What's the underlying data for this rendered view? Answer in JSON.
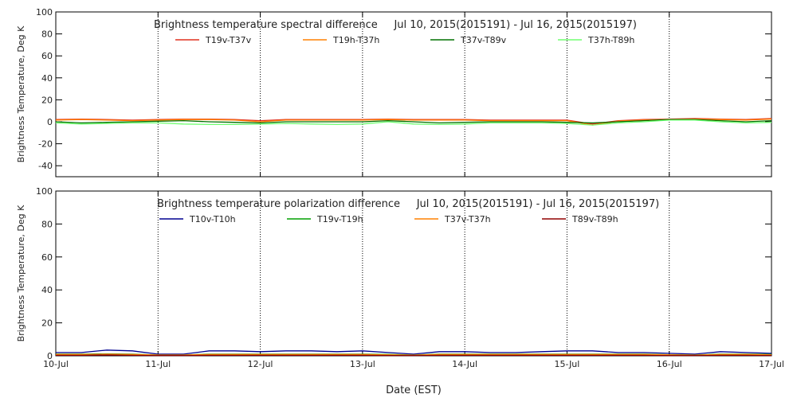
{
  "chart_data": [
    {
      "type": "line",
      "title": "Brightness temperature spectral difference     Jul 10, 2015(2015191) - Jul 16, 2015(2015197)",
      "y_label": "Brightness Temperature, Deg K",
      "x": [
        0,
        0.25,
        0.5,
        0.75,
        1,
        1.25,
        1.5,
        1.75,
        2,
        2.25,
        2.5,
        2.75,
        3,
        3.25,
        3.5,
        3.75,
        4,
        4.25,
        4.5,
        4.75,
        5,
        5.25,
        5.5,
        5.75,
        6,
        6.25,
        6.5,
        6.75,
        7
      ],
      "xlim": [
        0,
        7
      ],
      "xticks": [
        0,
        1,
        2,
        3,
        4,
        5,
        6,
        7
      ],
      "ylim": [
        -50,
        100
      ],
      "yticks": [
        -40,
        -20,
        0,
        20,
        40,
        60,
        80,
        100
      ],
      "grid": true,
      "series": [
        {
          "name": "T19v-T37v",
          "color": "#e0301e",
          "values": [
            2,
            2.5,
            2,
            1.5,
            2,
            2.5,
            2.5,
            2,
            1,
            2,
            2,
            2,
            2,
            2.5,
            2,
            2,
            2,
            1.5,
            1.5,
            1.5,
            1.5,
            -2,
            1,
            2,
            2.5,
            3,
            2.5,
            2,
            3
          ]
        },
        {
          "name": "T19h-T37h",
          "color": "#ff8000",
          "values": [
            1.5,
            2,
            1.5,
            1,
            1.5,
            2,
            2,
            1.5,
            0,
            1.5,
            1.5,
            1.5,
            1.5,
            2,
            1.5,
            1.5,
            1.5,
            1,
            1,
            1,
            1,
            -3,
            0.5,
            1.5,
            2,
            2.5,
            2,
            1.5,
            2.5
          ]
        },
        {
          "name": "T37v-T89v",
          "color": "#007000",
          "values": [
            0,
            -1,
            -0.5,
            0,
            0.5,
            1,
            0,
            -0.5,
            -1,
            0,
            0,
            0,
            0,
            1,
            0,
            -1,
            -0.5,
            0,
            0,
            0,
            -0.5,
            -1,
            0,
            1,
            2,
            2,
            1,
            0,
            1
          ]
        },
        {
          "name": "T37h-T89h",
          "color": "#70ff70",
          "values": [
            -1,
            -2,
            -1.5,
            -1,
            -1,
            -2,
            -2.5,
            -2.5,
            -2,
            -1.5,
            -2,
            -2.5,
            -2,
            0,
            -2,
            -2.5,
            -2,
            -1,
            -1,
            -1,
            -1.5,
            -3,
            -1,
            0,
            1.5,
            1.5,
            0,
            -1,
            -0.5
          ]
        }
      ]
    },
    {
      "type": "line",
      "title": "Brightness temperature polarization difference     Jul 10, 2015(2015191) - Jul 16, 2015(2015197)",
      "y_label": "Brightness Temperature, Deg K",
      "x_label": "Date (EST)",
      "x": [
        0,
        0.25,
        0.5,
        0.75,
        1,
        1.25,
        1.5,
        1.75,
        2,
        2.25,
        2.5,
        2.75,
        3,
        3.25,
        3.5,
        3.75,
        4,
        4.25,
        4.5,
        4.75,
        5,
        5.25,
        5.5,
        5.75,
        6,
        6.25,
        6.5,
        6.75,
        7
      ],
      "xlim": [
        0,
        7
      ],
      "xticks": [
        {
          "value": 0,
          "label": "10-Jul"
        },
        {
          "value": 1,
          "label": "11-Jul"
        },
        {
          "value": 2,
          "label": "12-Jul"
        },
        {
          "value": 3,
          "label": "13-Jul"
        },
        {
          "value": 4,
          "label": "14-Jul"
        },
        {
          "value": 5,
          "label": "15-Jul"
        },
        {
          "value": 6,
          "label": "16-Jul"
        },
        {
          "value": 7,
          "label": "17-Jul"
        }
      ],
      "ylim": [
        0,
        100
      ],
      "yticks": [
        0,
        20,
        40,
        60,
        80,
        100
      ],
      "grid": true,
      "series": [
        {
          "name": "T10v-T10h",
          "color": "#000090",
          "values": [
            2,
            2,
            3.5,
            3,
            1,
            1,
            3,
            3,
            2.5,
            3,
            3,
            2.5,
            3,
            2,
            1,
            2.5,
            2.5,
            2,
            2,
            2.5,
            3,
            3,
            2,
            2,
            1.5,
            1,
            2.5,
            2,
            1.5
          ]
        },
        {
          "name": "T19v-T19h",
          "color": "#00a000",
          "values": [
            1,
            1,
            1.2,
            1,
            0.5,
            0.5,
            1,
            1,
            1,
            1,
            1,
            1,
            1,
            0.8,
            0.5,
            1,
            1,
            1,
            1,
            1,
            1,
            1,
            1,
            1,
            0.7,
            0.5,
            1,
            1,
            0.8
          ]
        },
        {
          "name": "T37v-T37h",
          "color": "#ff8000",
          "values": [
            0.8,
            0.8,
            1,
            0.8,
            0.5,
            0.5,
            0.8,
            0.8,
            0.8,
            0.8,
            0.8,
            0.8,
            0.8,
            0.6,
            0.4,
            0.8,
            0.8,
            0.8,
            0.8,
            0.8,
            0.8,
            0.8,
            0.8,
            0.8,
            0.6,
            0.4,
            0.8,
            0.8,
            0.6
          ]
        },
        {
          "name": "T89v-T89h",
          "color": "#900000",
          "values": [
            0.3,
            0.3,
            0.5,
            0.3,
            0.2,
            0.2,
            0.3,
            0.3,
            0.3,
            0.3,
            0.3,
            0.3,
            0.3,
            0.2,
            0.2,
            0.3,
            0.3,
            0.3,
            0.3,
            0.3,
            0.3,
            0.3,
            0.3,
            0.3,
            0.2,
            0.2,
            0.3,
            0.3,
            0.2
          ]
        }
      ]
    }
  ]
}
